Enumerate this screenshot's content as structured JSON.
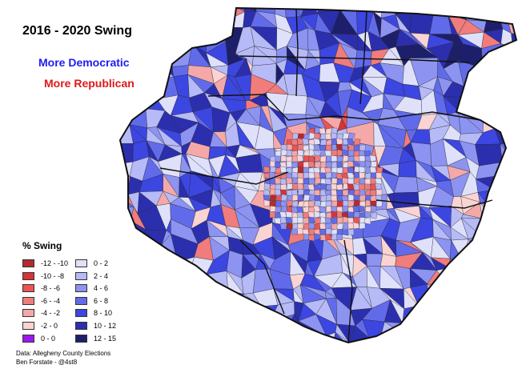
{
  "title": "2016 - 2020 Swing",
  "subtitle_democratic": "More Democratic",
  "subtitle_republican": "More Republican",
  "legend": {
    "title": "% Swing",
    "republican_bins": [
      {
        "label": "-12 - -10",
        "color": "#b42a2e"
      },
      {
        "label": "-10 - -8",
        "color": "#d7323a"
      },
      {
        "label": "-8 - -6",
        "color": "#eb5454"
      },
      {
        "label": "-6 - -4",
        "color": "#f07c7c"
      },
      {
        "label": "-4 - -2",
        "color": "#f5a8a8"
      },
      {
        "label": "-2 - 0",
        "color": "#fad3d3"
      },
      {
        "label": "0 - 0",
        "color": "#9a18f0"
      }
    ],
    "democratic_bins": [
      {
        "label": "0 - 2",
        "color": "#dfe1fb"
      },
      {
        "label": "2 - 4",
        "color": "#b6baf6"
      },
      {
        "label": "4 - 6",
        "color": "#8c93f1"
      },
      {
        "label": "6 - 8",
        "color": "#616bea"
      },
      {
        "label": "8 - 10",
        "color": "#3c46e0"
      },
      {
        "label": "10 - 12",
        "color": "#2b2fae"
      },
      {
        "label": "12 - 15",
        "color": "#1e1f6b"
      }
    ]
  },
  "credits": {
    "line1": "Data: Allegheny County Elections",
    "line2": "Ben Forstate - @4st8"
  },
  "colors": {
    "border": "#111111",
    "district_line": "#ffffff"
  }
}
